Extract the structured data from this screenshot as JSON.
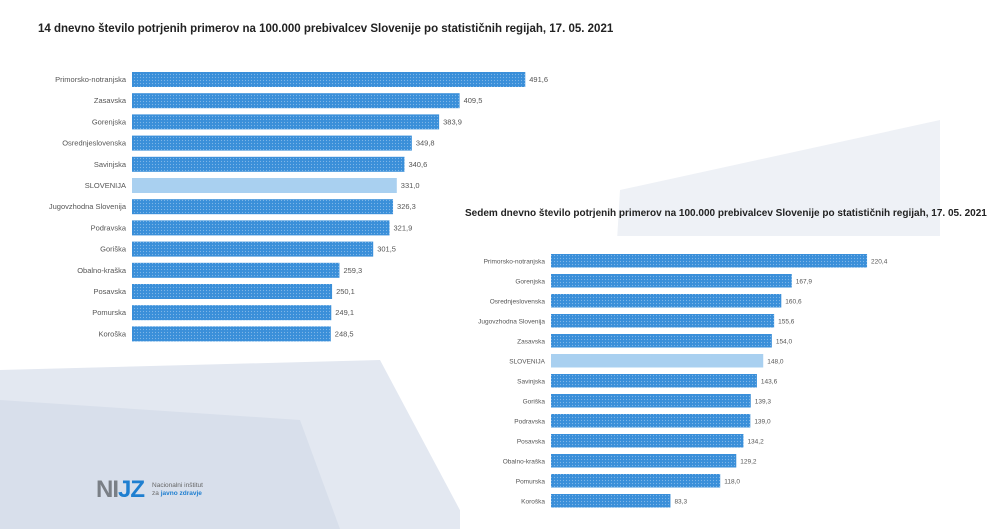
{
  "colors": {
    "bar": "#3a8fd9",
    "highlight": "#a9d0f0",
    "label": "#555555",
    "background": "#e3e8f1"
  },
  "logo": {
    "mark_a": "NI",
    "mark_b": "JZ",
    "line1": "Nacionalni inštitut",
    "line2_prefix": "za",
    "line2_bold": "javno zdravje"
  },
  "chart_data": [
    {
      "type": "bar",
      "orientation": "horizontal",
      "title": "14 dnevno število potrjenih primerov na 100.000 prebivalcev Slovenije po statističnih regijah, 17. 05. 2021",
      "categories": [
        "Primorsko-notranjska",
        "Zasavska",
        "Gorenjska",
        "Osrednjeslovenska",
        "Savinjska",
        "SLOVENIJA",
        "Jugovzhodna Slovenija",
        "Podravska",
        "Goriška",
        "Obalno-kraška",
        "Posavska",
        "Pomurska",
        "Koroška"
      ],
      "values": [
        491.6,
        409.5,
        383.9,
        349.8,
        340.6,
        331.0,
        326.3,
        321.9,
        301.5,
        259.3,
        250.1,
        249.1,
        248.5
      ],
      "value_labels": [
        "491,6",
        "409,5",
        "383,9",
        "349,8",
        "340,6",
        "331,0",
        "326,3",
        "321,9",
        "301,5",
        "259,3",
        "250,1",
        "249,1",
        "248,5"
      ],
      "highlight": "SLOVENIJA",
      "grid": false,
      "legend": "none"
    },
    {
      "type": "bar",
      "orientation": "horizontal",
      "title": "Sedem dnevno število potrjenih primerov na 100.000 prebivalcev Slovenije po statističnih regijah, 17. 05. 2021",
      "categories": [
        "Primorsko-notranjska",
        "Gorenjska",
        "Osrednjeslovenska",
        "Jugovzhodna Slovenija",
        "Zasavska",
        "SLOVENIJA",
        "Savinjska",
        "Goriška",
        "Podravska",
        "Posavska",
        "Obalno-kraška",
        "Pomurska",
        "Koroška"
      ],
      "values": [
        220.4,
        167.9,
        160.6,
        155.6,
        154.0,
        148.0,
        143.6,
        139.3,
        139.0,
        134.2,
        129.2,
        118.0,
        83.3
      ],
      "value_labels": [
        "220,4",
        "167,9",
        "160,6",
        "155,6",
        "154,0",
        "148,0",
        "143,6",
        "139,3",
        "139,0",
        "134,2",
        "129,2",
        "118,0",
        "83,3"
      ],
      "highlight": "SLOVENIJA",
      "grid": false,
      "legend": "none"
    }
  ]
}
